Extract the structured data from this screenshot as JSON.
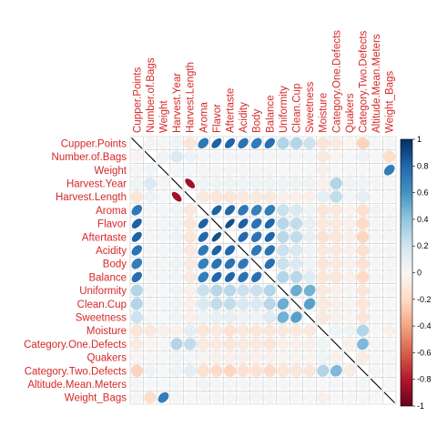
{
  "chart_data": {
    "type": "heatmap",
    "variables": [
      "Cupper.Points",
      "Number.of.Bags",
      "Weight",
      "Harvest.Year",
      "Harvest.Length",
      "Aroma",
      "Flavor",
      "Aftertaste",
      "Acidity",
      "Body",
      "Balance",
      "Uniformity",
      "Clean.Cup",
      "Sweetness",
      "Moisture",
      "Category.One.Defects",
      "Quakers",
      "Category.Two.Defects",
      "Altitude.Mean.Meters",
      "Weight_Bags"
    ],
    "matrix": [
      [
        1,
        -0.03,
        0.02,
        0.05,
        -0.12,
        0.72,
        0.82,
        0.81,
        0.74,
        0.7,
        0.76,
        0.3,
        0.3,
        0.21,
        -0.13,
        -0.09,
        -0.02,
        -0.23,
        0.02,
        0.02
      ],
      [
        -0.03,
        1,
        0.03,
        0.15,
        0.06,
        0.02,
        0.02,
        0.02,
        0.02,
        0.02,
        0.02,
        0.02,
        0.02,
        0.02,
        -0.1,
        -0.02,
        0.01,
        0.04,
        0.01,
        -0.18
      ],
      [
        0.02,
        0.03,
        1,
        0.02,
        0.01,
        0.02,
        0.02,
        0.02,
        0.02,
        0.02,
        0.02,
        0.01,
        0.01,
        0.01,
        -0.05,
        0.01,
        0.01,
        0.01,
        0,
        0.7
      ],
      [
        0.05,
        0.15,
        0.02,
        1,
        -0.85,
        0.05,
        0.05,
        0.05,
        0.05,
        0.05,
        0.05,
        0.05,
        0.05,
        0.05,
        -0.05,
        0.3,
        0.05,
        0.05,
        0.02,
        0.02
      ],
      [
        -0.12,
        0.06,
        0.01,
        -0.85,
        1,
        -0.1,
        -0.12,
        -0.12,
        -0.1,
        -0.1,
        -0.1,
        -0.05,
        -0.05,
        -0.05,
        0.1,
        0.25,
        0.02,
        0.1,
        0,
        0
      ],
      [
        0.72,
        0.02,
        0.02,
        0.05,
        -0.1,
        1,
        0.82,
        0.79,
        0.72,
        0.68,
        0.7,
        0.22,
        0.15,
        0.05,
        -0.12,
        -0.1,
        -0.03,
        -0.16,
        0.03,
        0.01
      ],
      [
        0.82,
        0.02,
        0.02,
        0.05,
        -0.12,
        0.82,
        1,
        0.89,
        0.82,
        0.74,
        0.8,
        0.28,
        0.25,
        0.08,
        -0.1,
        -0.1,
        -0.05,
        -0.2,
        0.02,
        0.02
      ],
      [
        0.81,
        0.02,
        0.02,
        0.05,
        -0.12,
        0.79,
        0.89,
        1,
        0.79,
        0.74,
        0.8,
        0.28,
        0.25,
        0.08,
        -0.15,
        -0.12,
        -0.05,
        -0.22,
        0.02,
        0.02
      ],
      [
        0.74,
        0.02,
        0.02,
        0.05,
        -0.1,
        0.72,
        0.82,
        0.79,
        1,
        0.72,
        0.74,
        0.22,
        0.16,
        0.05,
        -0.1,
        -0.1,
        -0.05,
        -0.16,
        0.02,
        0.02
      ],
      [
        0.7,
        0.02,
        0.02,
        0.05,
        -0.1,
        0.68,
        0.74,
        0.74,
        0.72,
        1,
        0.76,
        0.22,
        0.15,
        0.05,
        -0.12,
        -0.1,
        -0.05,
        -0.15,
        0.02,
        0.02
      ],
      [
        0.76,
        0.02,
        0.02,
        0.05,
        -0.1,
        0.7,
        0.8,
        0.8,
        0.74,
        0.76,
        1,
        0.3,
        0.28,
        0.12,
        -0.12,
        -0.12,
        -0.05,
        -0.2,
        0.02,
        0.02
      ],
      [
        0.3,
        0.02,
        0.01,
        0.05,
        -0.05,
        0.22,
        0.28,
        0.28,
        0.22,
        0.22,
        0.3,
        1,
        0.5,
        0.48,
        -0.1,
        -0.05,
        -0.02,
        -0.12,
        0.01,
        0.01
      ],
      [
        0.3,
        0.02,
        0.01,
        0.05,
        -0.05,
        0.15,
        0.25,
        0.25,
        0.16,
        0.15,
        0.28,
        0.5,
        1,
        0.55,
        -0.1,
        -0.05,
        -0.02,
        -0.12,
        0.01,
        0.01
      ],
      [
        0.21,
        0.02,
        0.01,
        0.05,
        -0.05,
        0.05,
        0.08,
        0.08,
        0.05,
        0.05,
        0.12,
        0.48,
        0.55,
        1,
        -0.1,
        -0.05,
        -0.02,
        -0.12,
        0.01,
        0.01
      ],
      [
        -0.13,
        -0.1,
        -0.05,
        -0.05,
        0.1,
        -0.12,
        -0.1,
        -0.15,
        -0.1,
        -0.12,
        -0.12,
        -0.1,
        -0.1,
        -0.1,
        1,
        0.05,
        0.05,
        0.3,
        0,
        -0.05
      ],
      [
        -0.09,
        -0.02,
        0.01,
        0.3,
        0.25,
        -0.1,
        -0.1,
        -0.12,
        -0.1,
        -0.1,
        -0.12,
        -0.05,
        -0.05,
        -0.05,
        0.05,
        1,
        -0.05,
        0.45,
        0.02,
        0.01
      ],
      [
        -0.02,
        0.01,
        0.01,
        0.05,
        0.02,
        -0.03,
        -0.05,
        -0.05,
        -0.05,
        -0.05,
        -0.05,
        -0.02,
        -0.02,
        -0.02,
        0.05,
        -0.05,
        1,
        -0.08,
        0.01,
        0.01
      ],
      [
        -0.23,
        0.04,
        0.01,
        0.05,
        0.1,
        -0.16,
        -0.2,
        -0.22,
        -0.16,
        -0.15,
        -0.2,
        -0.12,
        -0.12,
        -0.12,
        0.3,
        0.45,
        -0.08,
        1,
        0.02,
        0.01
      ],
      [
        0.02,
        0.01,
        0,
        0.02,
        0,
        0.03,
        0.02,
        0.02,
        0.02,
        0.02,
        0.02,
        0.01,
        0.01,
        0.01,
        0,
        0.02,
        0.01,
        0.02,
        1,
        0.01
      ],
      [
        0.02,
        -0.18,
        0.7,
        0.02,
        0,
        0.01,
        0.02,
        0.02,
        0.02,
        0.02,
        0.02,
        0.01,
        0.01,
        0.01,
        -0.05,
        0.01,
        0.01,
        0.01,
        0.01,
        1
      ]
    ],
    "colorbar": {
      "ticks": [
        "1",
        "0.8",
        "0.6",
        "0.4",
        "0.2",
        "0",
        "-0.2",
        "-0.4",
        "-0.6",
        "-0.8",
        "-1"
      ],
      "range": [
        -1,
        1
      ]
    },
    "colors": {
      "negative_strong": "#67001f",
      "negative_mid": "#d6604d",
      "neutral": "#f7f7f7",
      "positive_mid": "#4393c3",
      "positive_strong": "#053061",
      "label": "#d62728"
    }
  }
}
